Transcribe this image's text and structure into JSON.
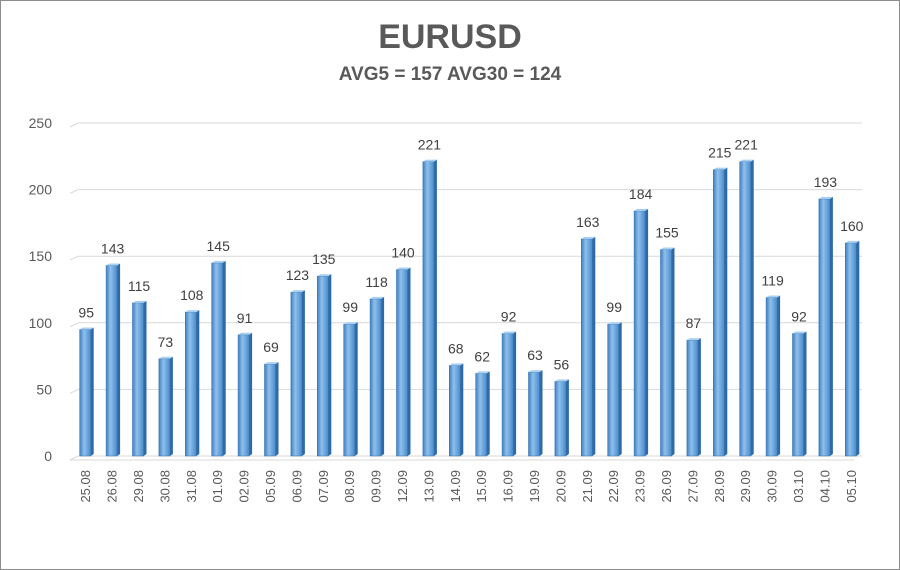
{
  "chart_data": {
    "type": "bar",
    "title": "EURUSD",
    "subtitle": "AVG5 = 157 AVG30 = 124",
    "xlabel": "",
    "ylabel": "",
    "ylim": [
      0,
      250
    ],
    "yticks": [
      "0",
      "50",
      "100",
      "150",
      "200",
      "250"
    ],
    "grid": true,
    "legend": "none",
    "bar_color": "#5b9bd5",
    "categories": [
      "25.08",
      "26.08",
      "29.08",
      "30.08",
      "31.08",
      "01.09",
      "02.09",
      "05.09",
      "06.09",
      "07.09",
      "08.09",
      "09.09",
      "12.09",
      "13.09",
      "14.09",
      "15.09",
      "16.09",
      "19.09",
      "20.09",
      "21.09",
      "22.09",
      "23.09",
      "26.09",
      "27.09",
      "28.09",
      "29.09",
      "30.09",
      "03.10",
      "04.10",
      "05.10"
    ],
    "values": [
      95,
      143,
      115,
      73,
      108,
      145,
      91,
      69,
      123,
      135,
      99,
      118,
      140,
      221,
      68,
      62,
      92,
      63,
      56,
      163,
      99,
      184,
      155,
      87,
      215,
      221,
      119,
      92,
      193,
      160
    ]
  }
}
